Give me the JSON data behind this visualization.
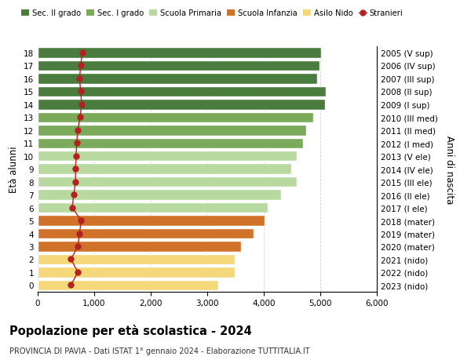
{
  "ages": [
    18,
    17,
    16,
    15,
    14,
    13,
    12,
    11,
    10,
    9,
    8,
    7,
    6,
    5,
    4,
    3,
    2,
    1,
    0
  ],
  "years": [
    "2005 (V sup)",
    "2006 (IV sup)",
    "2007 (III sup)",
    "2008 (II sup)",
    "2009 (I sup)",
    "2010 (III med)",
    "2011 (II med)",
    "2012 (I med)",
    "2013 (V ele)",
    "2014 (IV ele)",
    "2015 (III ele)",
    "2016 (II ele)",
    "2017 (I ele)",
    "2018 (mater)",
    "2019 (mater)",
    "2020 (mater)",
    "2021 (nido)",
    "2022 (nido)",
    "2023 (nido)"
  ],
  "bar_values": [
    5020,
    4980,
    4940,
    5100,
    5080,
    4880,
    4750,
    4700,
    4580,
    4480,
    4580,
    4300,
    4070,
    4020,
    3820,
    3600,
    3480,
    3480,
    3200
  ],
  "stranieri_values": [
    790,
    760,
    740,
    760,
    780,
    750,
    710,
    690,
    680,
    670,
    670,
    640,
    610,
    770,
    740,
    710,
    590,
    710,
    590
  ],
  "bar_colors": [
    "#4a7c3f",
    "#4a7c3f",
    "#4a7c3f",
    "#4a7c3f",
    "#4a7c3f",
    "#7aaa5a",
    "#7aaa5a",
    "#7aaa5a",
    "#b8d9a0",
    "#b8d9a0",
    "#b8d9a0",
    "#b8d9a0",
    "#b8d9a0",
    "#d0722a",
    "#d0722a",
    "#d0722a",
    "#f5d87a",
    "#f5d87a",
    "#f5d87a"
  ],
  "legend_labels": [
    "Sec. II grado",
    "Sec. I grado",
    "Scuola Primaria",
    "Scuola Infanzia",
    "Asilo Nido",
    "Stranieri"
  ],
  "legend_colors": [
    "#4a7c3f",
    "#7aaa5a",
    "#b8d9a0",
    "#d0722a",
    "#f5d87a",
    "#b22222"
  ],
  "ylabel_left": "Età alunni",
  "ylabel_right": "Anni di nascita",
  "title": "Popolazione per età scolastica - 2024",
  "subtitle": "PROVINCIA DI PAVIA - Dati ISTAT 1° gennaio 2024 - Elaborazione TUTTITALIA.IT",
  "xlim": [
    0,
    6000
  ],
  "xticks": [
    0,
    1000,
    2000,
    3000,
    4000,
    5000,
    6000
  ],
  "xtick_labels": [
    "0",
    "1,000",
    "2,000",
    "3,000",
    "4,000",
    "5,000",
    "6,000"
  ],
  "stranieri_color": "#b22222",
  "bg_color": "#ffffff",
  "bar_edge_color": "#ffffff",
  "bar_linewidth": 1.0,
  "grid_color": "#d0d0d0"
}
